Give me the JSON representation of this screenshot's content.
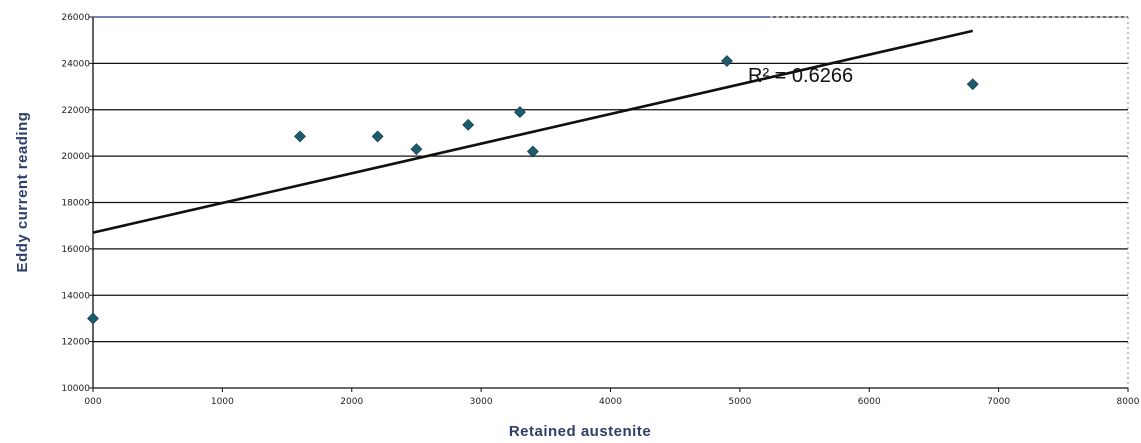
{
  "chart_data": {
    "type": "scatter",
    "xlabel": "Retained austenite",
    "ylabel": "Eddy current reading",
    "xlim": [
      0,
      8
    ],
    "ylim": [
      1000,
      2600
    ],
    "x_ticks": [
      0,
      1,
      2,
      3,
      4,
      5,
      6,
      7,
      8
    ],
    "y_ticks": [
      1000,
      1200,
      1400,
      1600,
      1800,
      2000,
      2200,
      2400,
      2600
    ],
    "x_tick_labels": [
      "000",
      "1000",
      "2000",
      "3000",
      "4000",
      "5000",
      "6000",
      "7000",
      "8000"
    ],
    "y_tick_labels": [
      "10000",
      "12000",
      "14000",
      "16000",
      "18000",
      "20000",
      "22000",
      "24000",
      "26000"
    ],
    "grid": "horizontal",
    "marker_color": "#1f5b6e",
    "points": [
      {
        "x": 0.0,
        "y": 1300
      },
      {
        "x": 1.6,
        "y": 2085
      },
      {
        "x": 2.2,
        "y": 2085
      },
      {
        "x": 2.5,
        "y": 2030
      },
      {
        "x": 2.9,
        "y": 2135
      },
      {
        "x": 3.3,
        "y": 2190
      },
      {
        "x": 3.4,
        "y": 2020
      },
      {
        "x": 4.9,
        "y": 2410
      },
      {
        "x": 6.8,
        "y": 2310
      }
    ],
    "trendline": {
      "x": [
        0,
        6.8
      ],
      "y": [
        1670,
        2540
      ]
    },
    "annotation": "R² = 0.6266"
  }
}
